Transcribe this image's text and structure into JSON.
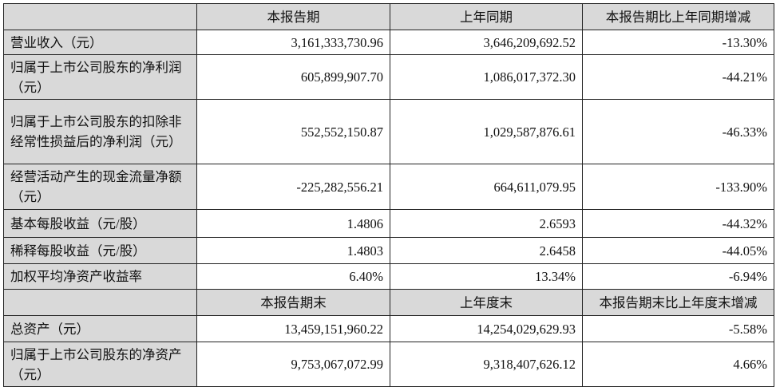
{
  "header1": [
    "",
    "本报告期",
    "上年同期",
    "本报告期比上年同期增减"
  ],
  "rows1": [
    {
      "label": "营业收入（元）",
      "current": "3,161,333,730.96",
      "prior": "3,646,209,692.52",
      "change": "-13.30%"
    },
    {
      "label": "归属于上市公司股东的净利润（元）",
      "current": "605,899,907.70",
      "prior": "1,086,017,372.30",
      "change": "-44.21%"
    },
    {
      "label": "归属于上市公司股东的扣除非经常性损益后的净利润（元）",
      "current": "552,552,150.87",
      "prior": "1,029,587,876.61",
      "change": "-46.33%"
    },
    {
      "label": "经营活动产生的现金流量净额（元）",
      "current": "-225,282,556.21",
      "prior": "664,611,079.95",
      "change": "-133.90%"
    },
    {
      "label": "基本每股收益（元/股）",
      "current": "1.4806",
      "prior": "2.6593",
      "change": "-44.32%"
    },
    {
      "label": "稀释每股收益（元/股）",
      "current": "1.4803",
      "prior": "2.6458",
      "change": "-44.05%"
    },
    {
      "label": "加权平均净资产收益率",
      "current": "6.40%",
      "prior": "13.34%",
      "change": "-6.94%"
    }
  ],
  "header2": [
    "",
    "本报告期末",
    "上年度末",
    "本报告期末比上年度末增减"
  ],
  "rows2": [
    {
      "label": "总资产（元）",
      "current": "13,459,151,960.22",
      "prior": "14,254,029,629.93",
      "change": "-5.58%"
    },
    {
      "label": "归属于上市公司股东的净资产（元）",
      "current": "9,753,067,072.99",
      "prior": "9,318,407,626.12",
      "change": "4.66%"
    }
  ]
}
